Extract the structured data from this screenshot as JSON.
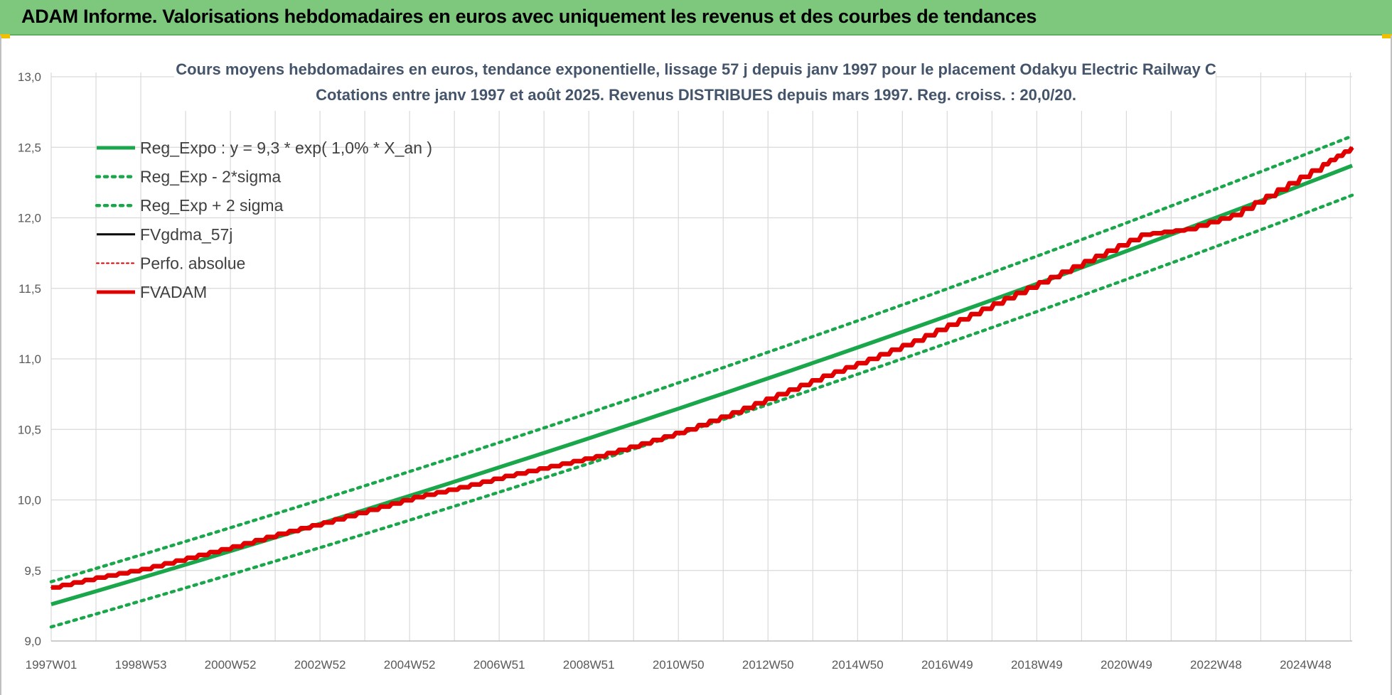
{
  "header": {
    "title": "ADAM Informe. Valorisations hebdomadaires en euros avec uniquement les revenus et des courbes de tendances"
  },
  "chart_data": {
    "type": "line",
    "title": "Cours moyens hebdomadaires en euros, tendance exponentielle, lissage 57 j depuis janv 1997 pour le placement Odakyu Electric Railway C",
    "subtitle": "Cotations entre janv 1997 et août 2025.  Revenus DISTRIBUES depuis mars 1997. Reg. croiss. : 20,0/20.",
    "xlabel": "",
    "ylabel": "",
    "ylim": [
      9.0,
      13.0
    ],
    "y_ticks": [
      "9,0",
      "9,5",
      "10,0",
      "10,5",
      "11,0",
      "11,5",
      "12,0",
      "12,5",
      "13,0"
    ],
    "x_ticks": [
      "1997W01",
      "1998W53",
      "2000W52",
      "2002W52",
      "2004W52",
      "2006W51",
      "2008W51",
      "2010W50",
      "2012W50",
      "2014W50",
      "2016W49",
      "2018W49",
      "2020W49",
      "2022W48",
      "2024W48"
    ],
    "grid": true,
    "legend_position": "top-left",
    "series": [
      {
        "name": "Reg_Expo : y = 9,3 * exp( 1,0% *  X_an )",
        "color": "#1aa64a",
        "style": "solid",
        "x": [
          "1997W01",
          "2025W34"
        ],
        "values": [
          9.26,
          12.37
        ]
      },
      {
        "name": "Reg_Exp - 2*sigma",
        "color": "#1aa64a",
        "style": "dotted",
        "x": [
          "1997W01",
          "2025W34"
        ],
        "values": [
          9.1,
          12.16
        ]
      },
      {
        "name": "Reg_Exp + 2 sigma",
        "color": "#1aa64a",
        "style": "dotted",
        "x": [
          "1997W01",
          "2025W34"
        ],
        "values": [
          9.42,
          12.58
        ]
      },
      {
        "name": "FVgdma_57j",
        "color": "#000000",
        "style": "solid",
        "x": [
          "1997W01",
          "1998W01",
          "1999W01",
          "2000W01",
          "2001W01",
          "2002W01",
          "2003W01",
          "2004W01",
          "2005W01",
          "2006W01",
          "2007W01",
          "2008W01",
          "2009W01",
          "2010W01",
          "2011W01",
          "2012W01",
          "2013W01",
          "2014W01",
          "2015W01",
          "2016W01",
          "2017W01",
          "2018W01",
          "2019W01",
          "2020W01",
          "2021W01",
          "2022W01",
          "2023W01",
          "2024W01",
          "2025W01",
          "2025W34"
        ],
        "values": [
          9.38,
          9.45,
          9.51,
          9.59,
          9.67,
          9.76,
          9.84,
          9.93,
          10.02,
          10.09,
          10.17,
          10.24,
          10.31,
          10.4,
          10.5,
          10.62,
          10.75,
          10.88,
          11.0,
          11.13,
          11.28,
          11.43,
          11.58,
          11.73,
          11.88,
          11.92,
          12.02,
          12.2,
          12.38,
          12.5
        ]
      },
      {
        "name": "Perfo. absolue",
        "color": "#e00000",
        "style": "dotted",
        "x": [
          "1997W01",
          "1998W01",
          "1999W01",
          "2000W01",
          "2001W01",
          "2002W01",
          "2003W01",
          "2004W01",
          "2005W01",
          "2006W01",
          "2007W01",
          "2008W01",
          "2009W01",
          "2010W01",
          "2011W01",
          "2012W01",
          "2013W01",
          "2014W01",
          "2015W01",
          "2016W01",
          "2017W01",
          "2018W01",
          "2019W01",
          "2020W01",
          "2021W01",
          "2022W01",
          "2023W01",
          "2024W01",
          "2025W01",
          "2025W34"
        ],
        "values": [
          9.38,
          9.45,
          9.51,
          9.59,
          9.67,
          9.76,
          9.84,
          9.93,
          10.02,
          10.09,
          10.17,
          10.24,
          10.31,
          10.4,
          10.5,
          10.62,
          10.75,
          10.88,
          11.0,
          11.13,
          11.28,
          11.43,
          11.58,
          11.73,
          11.88,
          11.92,
          12.02,
          12.2,
          12.38,
          12.5
        ]
      },
      {
        "name": "FVADAM",
        "color": "#e00000",
        "style": "solid",
        "x": [
          "1997W01",
          "1998W01",
          "1999W01",
          "2000W01",
          "2001W01",
          "2002W01",
          "2003W01",
          "2004W01",
          "2005W01",
          "2006W01",
          "2007W01",
          "2008W01",
          "2009W01",
          "2010W01",
          "2011W01",
          "2012W01",
          "2013W01",
          "2014W01",
          "2015W01",
          "2016W01",
          "2017W01",
          "2018W01",
          "2019W01",
          "2020W01",
          "2021W01",
          "2022W01",
          "2023W01",
          "2024W01",
          "2025W01",
          "2025W34"
        ],
        "values": [
          9.38,
          9.45,
          9.51,
          9.59,
          9.67,
          9.76,
          9.84,
          9.93,
          10.02,
          10.09,
          10.17,
          10.24,
          10.31,
          10.4,
          10.5,
          10.62,
          10.75,
          10.88,
          11.0,
          11.13,
          11.28,
          11.43,
          11.58,
          11.73,
          11.88,
          11.92,
          12.02,
          12.2,
          12.38,
          12.5
        ]
      }
    ]
  }
}
